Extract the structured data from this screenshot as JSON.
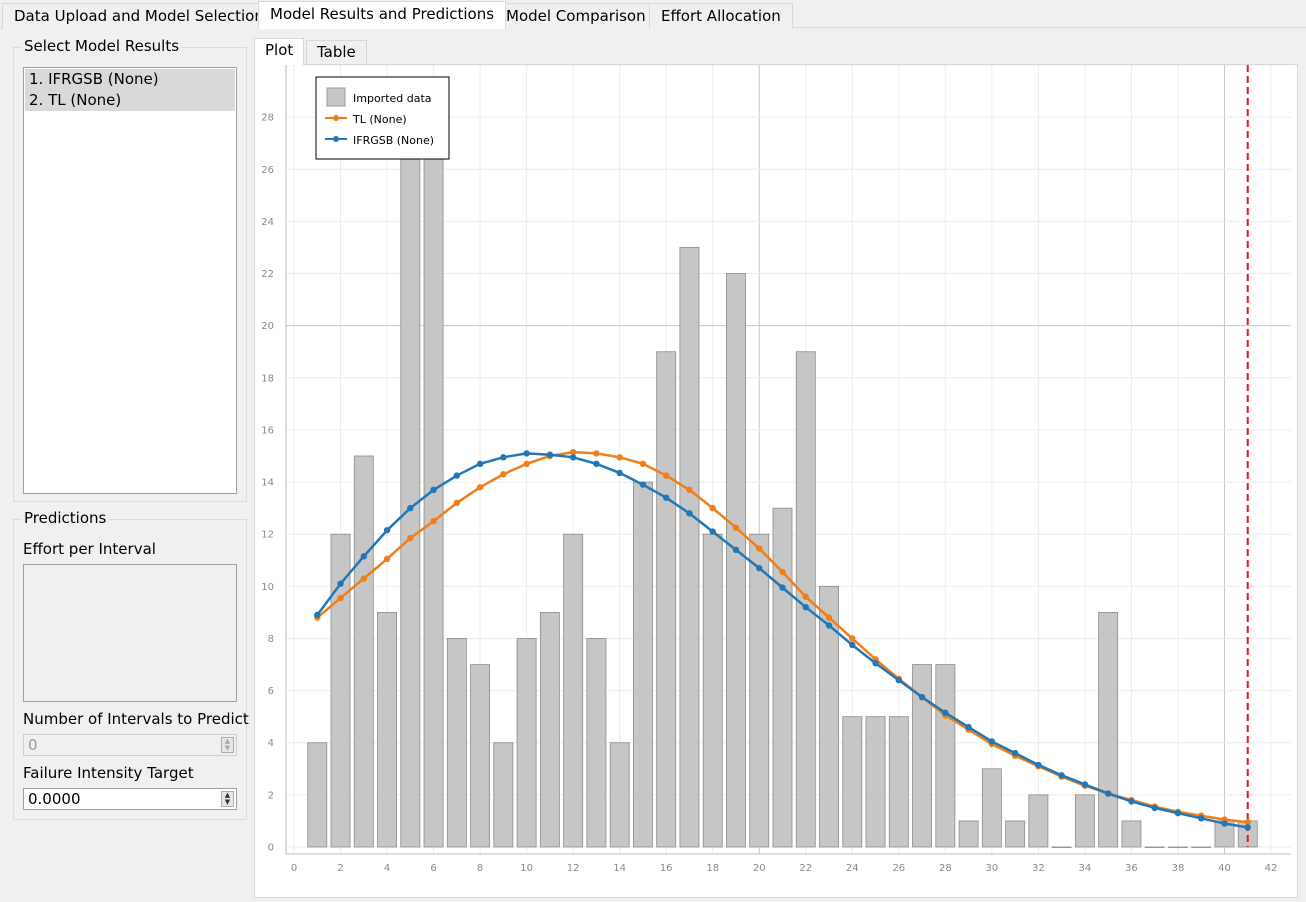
{
  "tabs": [
    {
      "label": "Data Upload and Model Selection"
    },
    {
      "label": "Model Results and Predictions"
    },
    {
      "label": "Model Comparison"
    },
    {
      "label": "Effort Allocation"
    }
  ],
  "left_panel": {
    "select_title": "Select Model Results",
    "models": [
      "1. IFRGSB (None)",
      "2. TL (None)"
    ],
    "predictions_title": "Predictions",
    "effort_label": "Effort per Interval",
    "intervals_label": "Number of Intervals to Predict",
    "intervals_value": "0",
    "intensity_label": "Failure Intensity Target",
    "intensity_value": "0.0000"
  },
  "subtabs": [
    {
      "label": "Plot"
    },
    {
      "label": "Table"
    }
  ],
  "legend": {
    "bars": "Imported data",
    "tl": "TL (None)",
    "ifrgsb": "IFRGSB (None)"
  },
  "colors": {
    "bars": "#c6c6c6",
    "tl": "#f07f19",
    "ifrgsb": "#2177b8",
    "target_line": "#e8141e"
  },
  "chart_data": {
    "type": "bar",
    "x": [
      1,
      2,
      3,
      4,
      5,
      6,
      7,
      8,
      9,
      10,
      11,
      12,
      13,
      14,
      15,
      16,
      17,
      18,
      19,
      20,
      21,
      22,
      23,
      24,
      25,
      26,
      27,
      28,
      29,
      30,
      31,
      32,
      33,
      34,
      35,
      36,
      37,
      38,
      39,
      40,
      41
    ],
    "values": [
      4,
      12,
      15,
      9,
      27,
      27,
      8,
      7,
      4,
      8,
      9,
      12,
      8,
      4,
      14,
      19,
      23,
      12,
      22,
      12,
      13,
      19,
      10,
      5,
      5,
      5,
      7,
      7,
      1,
      3,
      1,
      2,
      0,
      2,
      9,
      1,
      0,
      0,
      0,
      1,
      1
    ],
    "series": [
      {
        "name": "TL (None)",
        "type": "line",
        "values": [
          8.8,
          9.55,
          10.3,
          11.05,
          11.85,
          12.5,
          13.2,
          13.8,
          14.3,
          14.7,
          15.0,
          15.15,
          15.1,
          14.95,
          14.7,
          14.25,
          13.7,
          13.0,
          12.25,
          11.45,
          10.55,
          9.6,
          8.8,
          8.0,
          7.2,
          6.45,
          5.75,
          5.05,
          4.5,
          3.95,
          3.5,
          3.1,
          2.7,
          2.35,
          2.05,
          1.8,
          1.55,
          1.35,
          1.2,
          1.05,
          0.95
        ]
      },
      {
        "name": "IFRGSB (None)",
        "type": "line",
        "values": [
          8.9,
          10.1,
          11.15,
          12.15,
          13.0,
          13.7,
          14.25,
          14.7,
          14.95,
          15.1,
          15.05,
          14.95,
          14.7,
          14.35,
          13.9,
          13.4,
          12.8,
          12.1,
          11.4,
          10.7,
          9.95,
          9.2,
          8.5,
          7.75,
          7.05,
          6.4,
          5.75,
          5.15,
          4.6,
          4.05,
          3.6,
          3.15,
          2.75,
          2.4,
          2.05,
          1.75,
          1.5,
          1.3,
          1.1,
          0.9,
          0.75
        ]
      }
    ],
    "target_x": 41,
    "xlim": [
      0,
      42
    ],
    "ylim": [
      0,
      30
    ],
    "xticks": [
      0,
      2,
      4,
      6,
      8,
      10,
      12,
      14,
      16,
      18,
      20,
      22,
      24,
      26,
      28,
      30,
      32,
      34,
      36,
      38,
      40,
      42
    ],
    "yticks": [
      0,
      2,
      4,
      6,
      8,
      10,
      12,
      14,
      16,
      18,
      20,
      22,
      24,
      26,
      28
    ],
    "grid": true,
    "legend_position": "top-left"
  }
}
